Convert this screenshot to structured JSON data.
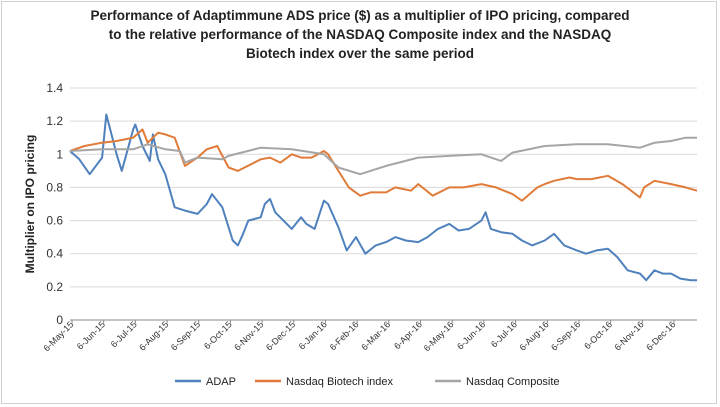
{
  "chart_data": {
    "type": "line",
    "title_lines": [
      "Performance of Adaptimmune ADS price ($) as a multiplier of IPO pricing, compared",
      "to the relative performance of the NASDAQ Composite index and the NASDAQ",
      "Biotech index over the same period"
    ],
    "ylabel": "Multiplier on IPO pricing",
    "xlabel": "",
    "ylim": [
      0,
      1.4
    ],
    "yticks": [
      "0",
      "0.2",
      "0.4",
      "0.6",
      "0.8",
      "1",
      "1.2",
      "1.4"
    ],
    "xtick_labels": [
      "6-May-15",
      "6-Jun-15",
      "6-Jul-15",
      "6-Aug-15",
      "6-Sep-15",
      "6-Oct-15",
      "6-Nov-15",
      "6-Dec-15",
      "6-Jan-16",
      "6-Feb-16",
      "6-Mar-16",
      "6-Apr-16",
      "6-May-16",
      "6-Jun-16",
      "6-Jul-16",
      "6-Aug-16",
      "6-Sep-16",
      "6-Oct-16",
      "6-Nov-16",
      "6-Dec-16"
    ],
    "grid": "horizontal",
    "legend_position": "bottom",
    "colors": {
      "ADAP": "#4f81bd",
      "Nasdaq Biotech index": "#e07b39",
      "Nasdaq Composite": "#a5a5a5"
    },
    "series": [
      {
        "name": "ADAP",
        "x": [
          "2015-05-06",
          "2015-05-15",
          "2015-05-25",
          "2015-06-06",
          "2015-06-10",
          "2015-06-15",
          "2015-06-20",
          "2015-06-25",
          "2015-07-06",
          "2015-07-08",
          "2015-07-15",
          "2015-07-22",
          "2015-07-25",
          "2015-07-30",
          "2015-08-06",
          "2015-08-15",
          "2015-08-25",
          "2015-09-06",
          "2015-09-15",
          "2015-09-20",
          "2015-09-30",
          "2015-10-06",
          "2015-10-10",
          "2015-10-15",
          "2015-10-20",
          "2015-10-25",
          "2015-11-06",
          "2015-11-10",
          "2015-11-15",
          "2015-11-20",
          "2015-12-06",
          "2015-12-15",
          "2015-12-20",
          "2015-12-28",
          "2016-01-06",
          "2016-01-10",
          "2016-01-20",
          "2016-01-28",
          "2016-02-06",
          "2016-02-15",
          "2016-02-25",
          "2016-03-06",
          "2016-03-15",
          "2016-03-25",
          "2016-04-06",
          "2016-04-15",
          "2016-04-25",
          "2016-05-06",
          "2016-05-15",
          "2016-05-25",
          "2016-06-06",
          "2016-06-10",
          "2016-06-15",
          "2016-06-25",
          "2016-07-06",
          "2016-07-15",
          "2016-07-25",
          "2016-08-06",
          "2016-08-15",
          "2016-08-25",
          "2016-09-06",
          "2016-09-15",
          "2016-09-25",
          "2016-10-06",
          "2016-10-15",
          "2016-10-25",
          "2016-11-06",
          "2016-11-12",
          "2016-11-20",
          "2016-11-28",
          "2016-12-06",
          "2016-12-15",
          "2016-12-25",
          "2016-12-31"
        ],
        "values": [
          1.02,
          0.97,
          0.88,
          0.98,
          1.24,
          1.12,
          1.0,
          0.9,
          1.15,
          1.18,
          1.05,
          0.96,
          1.12,
          0.97,
          0.88,
          0.68,
          0.66,
          0.64,
          0.7,
          0.76,
          0.68,
          0.56,
          0.48,
          0.45,
          0.52,
          0.6,
          0.62,
          0.7,
          0.73,
          0.65,
          0.55,
          0.62,
          0.58,
          0.55,
          0.72,
          0.7,
          0.56,
          0.42,
          0.5,
          0.4,
          0.45,
          0.47,
          0.5,
          0.48,
          0.47,
          0.5,
          0.55,
          0.58,
          0.54,
          0.55,
          0.6,
          0.65,
          0.55,
          0.53,
          0.52,
          0.48,
          0.45,
          0.48,
          0.52,
          0.45,
          0.42,
          0.4,
          0.42,
          0.43,
          0.38,
          0.3,
          0.28,
          0.24,
          0.3,
          0.28,
          0.28,
          0.25,
          0.24,
          0.24
        ]
      },
      {
        "name": "Nasdaq Biotech index",
        "x": [
          "2015-05-06",
          "2015-05-20",
          "2015-06-06",
          "2015-06-20",
          "2015-07-06",
          "2015-07-15",
          "2015-07-20",
          "2015-07-30",
          "2015-08-06",
          "2015-08-15",
          "2015-08-25",
          "2015-09-06",
          "2015-09-15",
          "2015-09-25",
          "2015-10-06",
          "2015-10-15",
          "2015-11-06",
          "2015-11-15",
          "2015-11-25",
          "2015-12-06",
          "2015-12-15",
          "2015-12-25",
          "2016-01-06",
          "2016-01-10",
          "2016-01-20",
          "2016-01-30",
          "2016-02-10",
          "2016-02-20",
          "2016-03-06",
          "2016-03-15",
          "2016-03-30",
          "2016-04-06",
          "2016-04-20",
          "2016-05-06",
          "2016-05-20",
          "2016-06-06",
          "2016-06-20",
          "2016-07-06",
          "2016-07-15",
          "2016-07-30",
          "2016-08-06",
          "2016-08-15",
          "2016-08-30",
          "2016-09-06",
          "2016-09-20",
          "2016-10-06",
          "2016-10-20",
          "2016-11-06",
          "2016-11-10",
          "2016-11-20",
          "2016-12-06",
          "2016-12-20",
          "2016-12-31"
        ],
        "values": [
          1.02,
          1.05,
          1.07,
          1.08,
          1.1,
          1.15,
          1.07,
          1.13,
          1.12,
          1.1,
          0.93,
          0.98,
          1.03,
          1.05,
          0.92,
          0.9,
          0.97,
          0.98,
          0.95,
          1.0,
          0.98,
          0.98,
          1.02,
          1.0,
          0.9,
          0.8,
          0.75,
          0.77,
          0.77,
          0.8,
          0.78,
          0.82,
          0.75,
          0.8,
          0.8,
          0.82,
          0.8,
          0.76,
          0.72,
          0.8,
          0.82,
          0.84,
          0.86,
          0.85,
          0.85,
          0.87,
          0.82,
          0.74,
          0.8,
          0.84,
          0.82,
          0.8,
          0.78
        ]
      },
      {
        "name": "Nasdaq Composite",
        "x": [
          "2015-05-06",
          "2015-06-06",
          "2015-07-06",
          "2015-07-20",
          "2015-08-06",
          "2015-08-20",
          "2015-08-25",
          "2015-09-06",
          "2015-09-30",
          "2015-10-06",
          "2015-11-06",
          "2015-12-06",
          "2016-01-06",
          "2016-01-20",
          "2016-02-10",
          "2016-03-06",
          "2016-04-06",
          "2016-05-06",
          "2016-06-06",
          "2016-06-25",
          "2016-07-06",
          "2016-08-06",
          "2016-09-06",
          "2016-10-06",
          "2016-11-06",
          "2016-11-20",
          "2016-12-06",
          "2016-12-20",
          "2016-12-31"
        ],
        "values": [
          1.02,
          1.03,
          1.03,
          1.06,
          1.03,
          1.02,
          0.95,
          0.98,
          0.97,
          0.99,
          1.04,
          1.03,
          1.0,
          0.92,
          0.88,
          0.93,
          0.98,
          0.99,
          1.0,
          0.96,
          1.01,
          1.05,
          1.06,
          1.06,
          1.04,
          1.07,
          1.08,
          1.1,
          1.1
        ]
      }
    ]
  }
}
